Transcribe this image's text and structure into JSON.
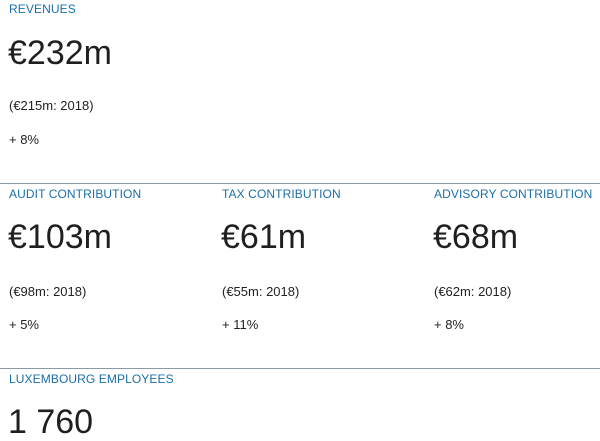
{
  "revenues": {
    "label": "REVENUES",
    "value": "€232m",
    "prior": "(€215m: 2018)",
    "change": "+ 8%"
  },
  "contributions": [
    {
      "label": "AUDIT CONTRIBUTION",
      "value": "€103m",
      "prior": "(€98m: 2018)",
      "change": "+ 5%"
    },
    {
      "label": "TAX CONTRIBUTION",
      "value": "€61m",
      "prior": "(€55m: 2018)",
      "change": "+ 11%"
    },
    {
      "label": "ADVISORY CONTRIBUTION",
      "value": "€68m",
      "prior": "(€62m: 2018)",
      "change": "+ 8%"
    }
  ],
  "employees": {
    "label": "LUXEMBOURG EMPLOYEES",
    "value": "1 760"
  },
  "colors": {
    "label": "#1b6fa8",
    "rule": "#8a9aa6",
    "text": "#1f1f1f"
  }
}
